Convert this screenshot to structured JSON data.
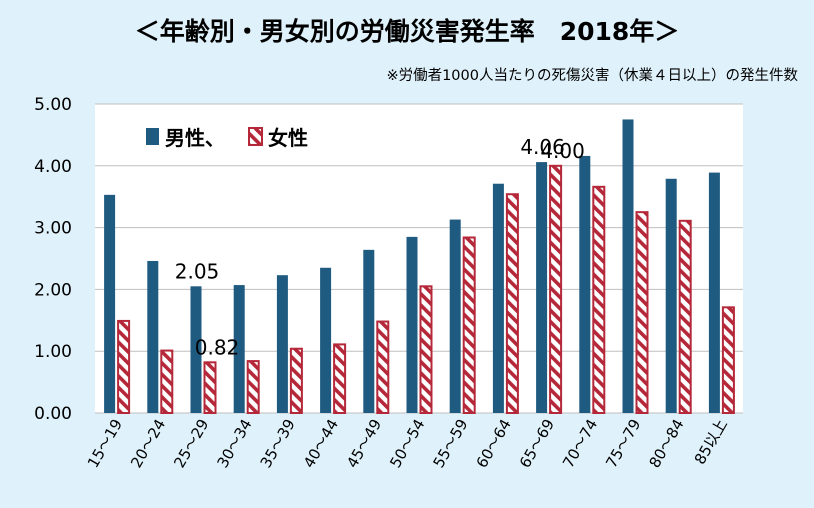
{
  "title": "＜年齢別・男女別の労働災害発生率　2018年＞",
  "subtitle": "※労働者1000人当たりの死傷災害（休業４日以上）の発生件数",
  "colors": {
    "male": "#1f5b80",
    "female_stroke": "#b5283a",
    "female_hatch": "#b5283a",
    "background": "#dff1fa",
    "plot": "#ffffff",
    "grid": "#bfbfbf"
  },
  "legend": {
    "male_label": "男性、",
    "female_label": "女性",
    "placement": "top-left"
  },
  "chart_data": {
    "type": "bar",
    "categories": [
      "15～19",
      "20～24",
      "25～29",
      "30～34",
      "35～39",
      "40～44",
      "45～49",
      "50～54",
      "55～59",
      "60～64",
      "65～69",
      "70～74",
      "75～79",
      "80～84",
      "85以上"
    ],
    "series": [
      {
        "name": "男性",
        "values": [
          3.53,
          2.46,
          2.05,
          2.07,
          2.23,
          2.35,
          2.64,
          2.85,
          3.13,
          3.71,
          4.06,
          4.16,
          4.75,
          3.79,
          3.89
        ]
      },
      {
        "name": "女性",
        "values": [
          1.49,
          1.01,
          0.82,
          0.84,
          1.04,
          1.11,
          1.48,
          2.05,
          2.84,
          3.54,
          4.0,
          3.66,
          3.25,
          3.11,
          1.71
        ]
      }
    ],
    "ylim": [
      0,
      5
    ],
    "yticks": [
      "0.00",
      "1.00",
      "2.00",
      "3.00",
      "4.00",
      "5.00"
    ],
    "grid": true,
    "data_labels": [
      {
        "text": "2.05",
        "category_index": 2,
        "series_index": 0
      },
      {
        "text": "0.82",
        "category_index": 2,
        "series_index": 1
      },
      {
        "text": "4.06",
        "category_index": 10,
        "series_index": 0
      },
      {
        "text": "4.00",
        "category_index": 10,
        "series_index": 1
      }
    ]
  }
}
